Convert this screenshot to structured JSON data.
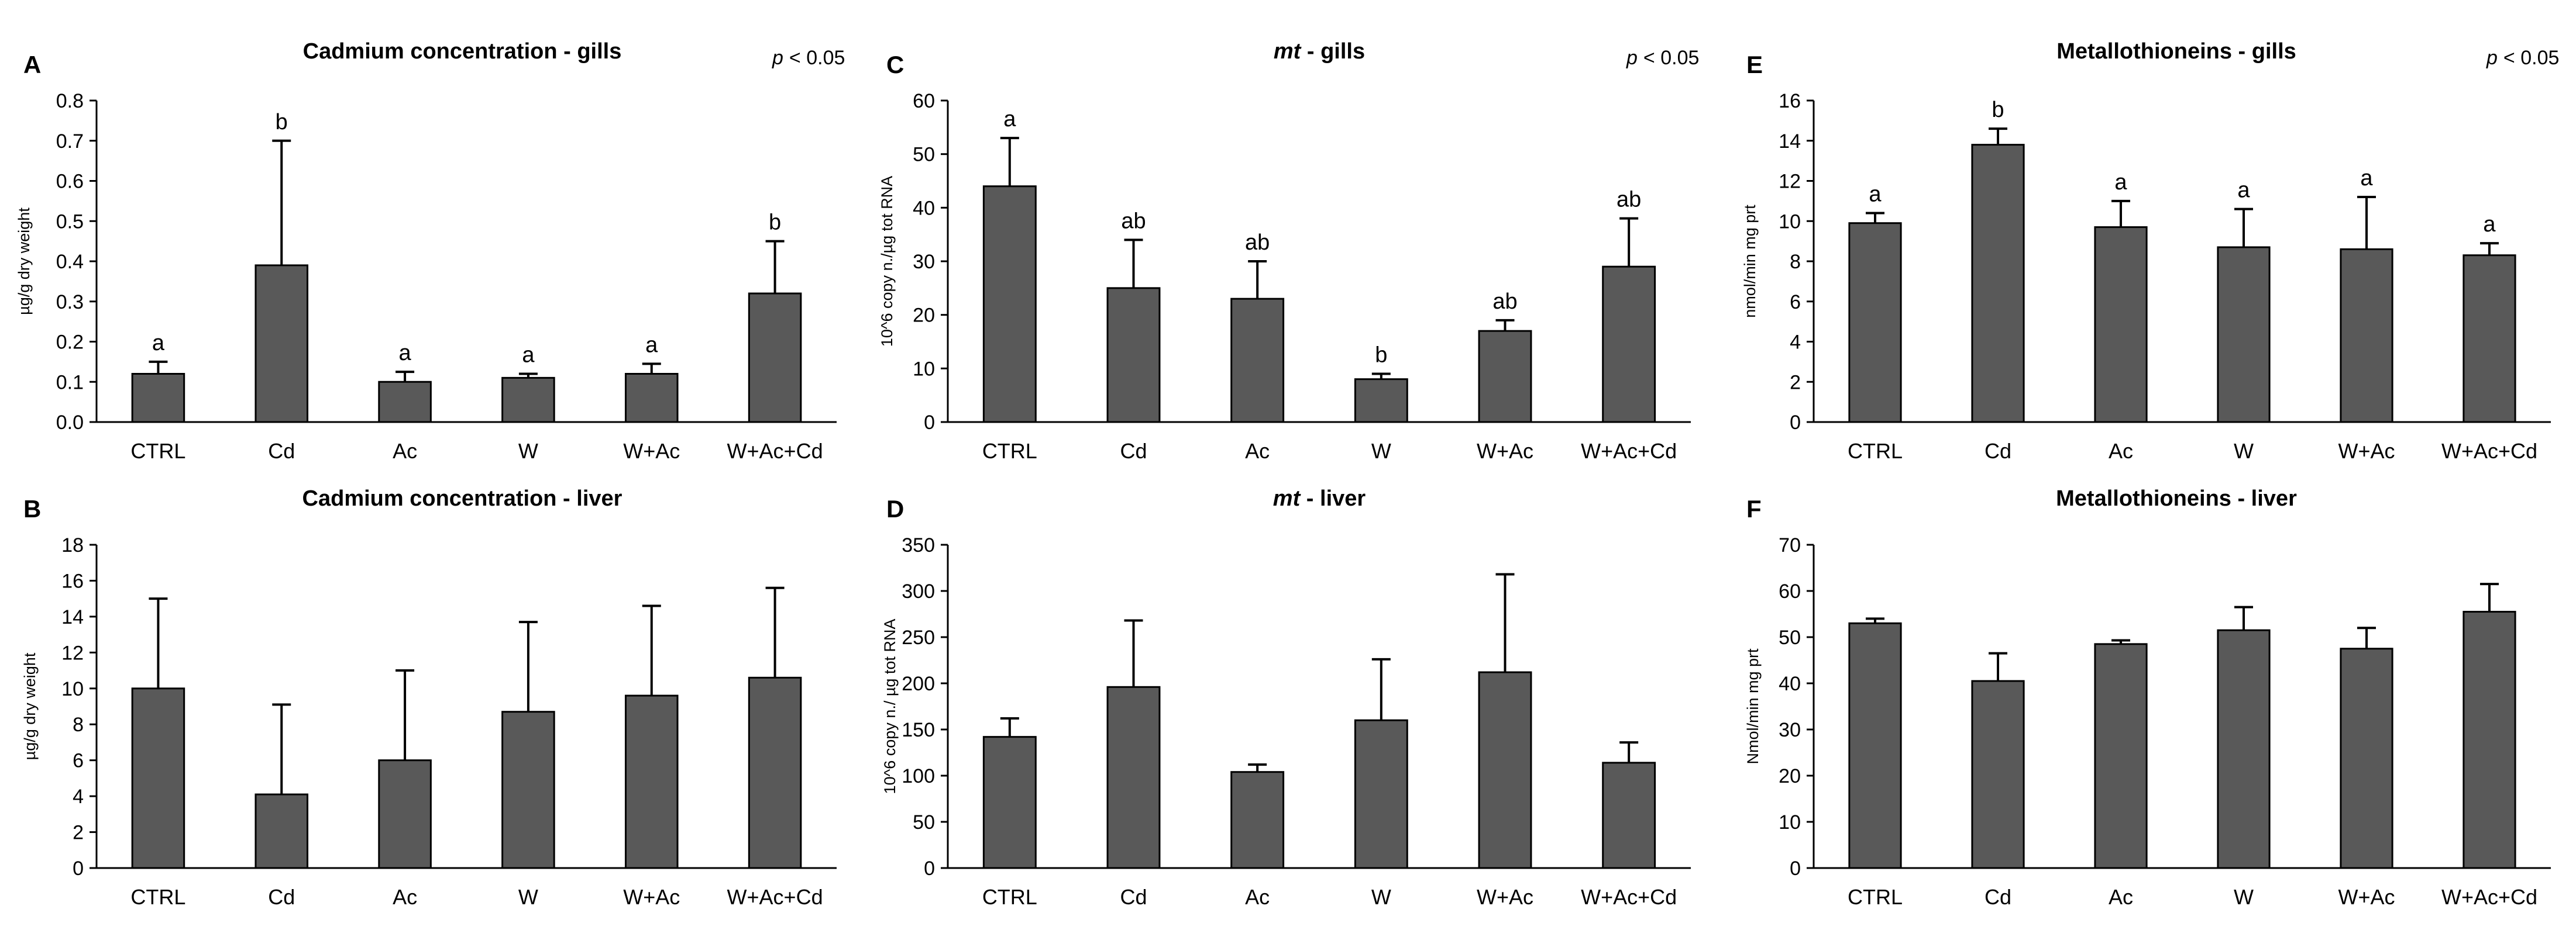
{
  "chart_data": [
    {
      "id": "A",
      "type": "bar",
      "panel_letter": "A",
      "title": "Cadmium concentration - gills",
      "title_italic_part": "",
      "p_value_label": "< 0.05",
      "p_symbol": "p",
      "ylabel": "µg/g dry weight",
      "ylim": [
        0,
        0.8
      ],
      "yticks": [
        "0.0",
        "0.1",
        "0.2",
        "0.3",
        "0.4",
        "0.5",
        "0.6",
        "0.7",
        "0.8"
      ],
      "categories": [
        "CTRL",
        "Cd",
        "Ac",
        "W",
        "W+Ac",
        "W+Ac+Cd"
      ],
      "values": [
        0.12,
        0.39,
        0.1,
        0.11,
        0.12,
        0.32
      ],
      "errors": [
        0.03,
        0.31,
        0.025,
        0.01,
        0.025,
        0.13
      ],
      "sig_labels": [
        "a",
        "b",
        "a",
        "a",
        "a",
        "b"
      ]
    },
    {
      "id": "B",
      "type": "bar",
      "panel_letter": "B",
      "title": "Cadmium concentration - liver",
      "title_italic_part": "",
      "p_value_label": "",
      "p_symbol": "",
      "ylabel": "µg/g dry weight",
      "ylim": [
        0,
        18
      ],
      "yticks": [
        "0",
        "2",
        "4",
        "6",
        "8",
        "10",
        "12",
        "14",
        "16",
        "18"
      ],
      "categories": [
        "CTRL",
        "Cd",
        "Ac",
        "W",
        "W+Ac",
        "W+Ac+Cd"
      ],
      "values": [
        10.0,
        4.1,
        6.0,
        8.7,
        9.6,
        10.6
      ],
      "errors": [
        5.0,
        5.0,
        5.0,
        5.0,
        5.0,
        5.0
      ],
      "sig_labels": []
    },
    {
      "id": "C",
      "type": "bar",
      "panel_letter": "C",
      "title": " - gills",
      "title_italic_part": "mt",
      "p_value_label": "< 0.05",
      "p_symbol": "p",
      "ylabel": "10^6 copy n./µg tot RNA",
      "ylim": [
        0,
        60
      ],
      "yticks": [
        "0",
        "10",
        "20",
        "30",
        "40",
        "50",
        "60"
      ],
      "categories": [
        "CTRL",
        "Cd",
        "Ac",
        "W",
        "W+Ac",
        "W+Ac+Cd"
      ],
      "values": [
        44.0,
        25.0,
        23.0,
        8.0,
        17.0,
        29.0
      ],
      "errors": [
        9.0,
        9.0,
        7.0,
        1.0,
        2.0,
        9.0
      ],
      "sig_labels": [
        "a",
        "ab",
        "ab",
        "b",
        "ab",
        "ab"
      ]
    },
    {
      "id": "D",
      "type": "bar",
      "panel_letter": "D",
      "title": " - liver",
      "title_italic_part": "mt",
      "p_value_label": "",
      "p_symbol": "",
      "ylabel": "10^6 copy n./ µg tot RNA",
      "ylim": [
        0,
        350
      ],
      "yticks": [
        "0",
        "50",
        "100",
        "150",
        "200",
        "250",
        "300",
        "350"
      ],
      "categories": [
        "CTRL",
        "Cd",
        "Ac",
        "W",
        "W+Ac",
        "W+Ac+Cd"
      ],
      "values": [
        142,
        196,
        104,
        160,
        212,
        114
      ],
      "errors": [
        20,
        72,
        8,
        66,
        106,
        22
      ],
      "sig_labels": []
    },
    {
      "id": "E",
      "type": "bar",
      "panel_letter": "E",
      "title": "Metallothioneins - gills",
      "title_italic_part": "",
      "p_value_label": "< 0.05",
      "p_symbol": "p",
      "ylabel": "nmol/min mg prt",
      "ylim": [
        0,
        16
      ],
      "yticks": [
        "0",
        "2",
        "4",
        "6",
        "8",
        "10",
        "12",
        "14",
        "16"
      ],
      "categories": [
        "CTRL",
        "Cd",
        "Ac",
        "W",
        "W+Ac",
        "W+Ac+Cd"
      ],
      "values": [
        9.9,
        13.8,
        9.7,
        8.7,
        8.6,
        8.3
      ],
      "errors": [
        0.5,
        0.8,
        1.3,
        1.9,
        2.6,
        0.6
      ],
      "sig_labels": [
        "a",
        "b",
        "a",
        "a",
        "a",
        "a"
      ]
    },
    {
      "id": "F",
      "type": "bar",
      "panel_letter": "F",
      "title": "Metallothioneins - liver",
      "title_italic_part": "",
      "p_value_label": "",
      "p_symbol": "",
      "ylabel": "Nmol/min mg prt",
      "ylim": [
        0,
        70
      ],
      "yticks": [
        "0",
        "10",
        "20",
        "30",
        "40",
        "50",
        "60",
        "70"
      ],
      "categories": [
        "CTRL",
        "Cd",
        "Ac",
        "W",
        "W+Ac",
        "W+Ac+Cd"
      ],
      "values": [
        53.0,
        40.5,
        48.5,
        51.5,
        47.5,
        55.5
      ],
      "errors": [
        1.0,
        6.0,
        0.8,
        5.0,
        4.5,
        6.0
      ],
      "sig_labels": []
    }
  ],
  "colors": {
    "bar_fill": "#595959",
    "bar_stroke": "#000000",
    "background": "#ffffff"
  }
}
